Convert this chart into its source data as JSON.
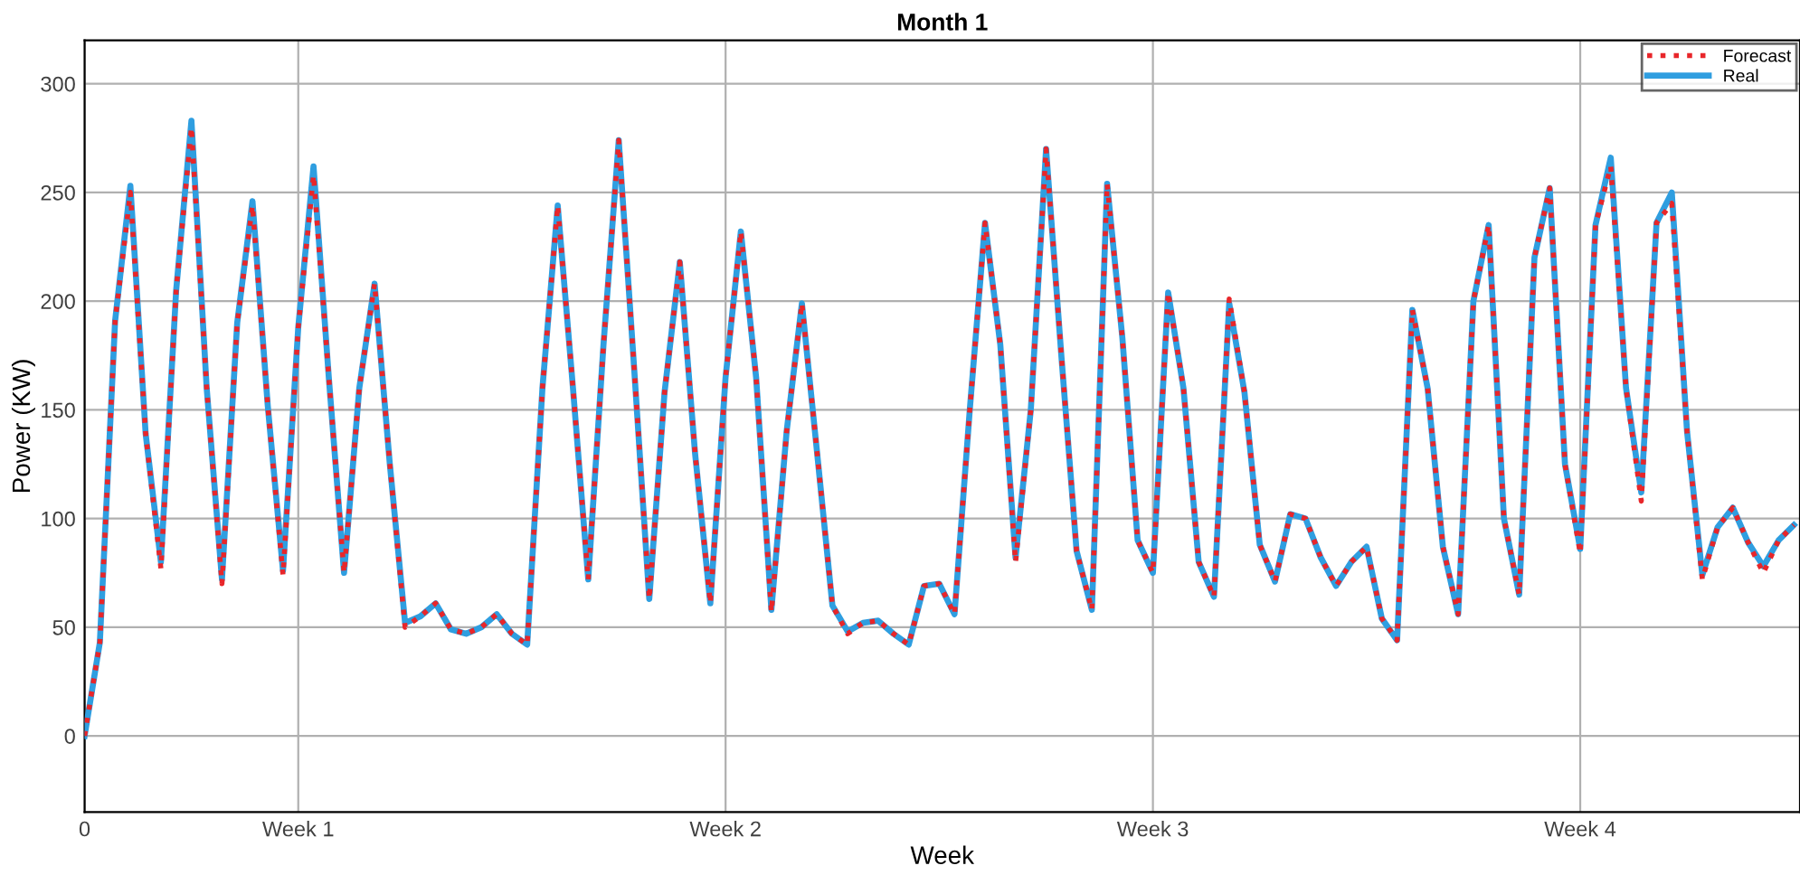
{
  "chart_data": {
    "type": "line",
    "title": "Month 1",
    "xlabel": "Week",
    "ylabel": "Power (KW)",
    "categories": [
      "0",
      null,
      null,
      null,
      null,
      null,
      null,
      null,
      null,
      null,
      null,
      null,
      null,
      null,
      "Week 1",
      null,
      null,
      null,
      null,
      null,
      null,
      null,
      null,
      null,
      null,
      null,
      null,
      null,
      null,
      null,
      null,
      null,
      null,
      null,
      null,
      null,
      null,
      null,
      null,
      null,
      null,
      null,
      "Week 2",
      null,
      null,
      null,
      null,
      null,
      null,
      null,
      null,
      null,
      null,
      null,
      null,
      null,
      null,
      null,
      null,
      null,
      null,
      null,
      null,
      null,
      null,
      null,
      null,
      null,
      null,
      null,
      "Week 3",
      null,
      null,
      null,
      null,
      null,
      null,
      null,
      null,
      null,
      null,
      null,
      null,
      null,
      null,
      null,
      null,
      null,
      null,
      null,
      null,
      null,
      null,
      null,
      null,
      null,
      null,
      null,
      "Week 4",
      null,
      null,
      null,
      null,
      null,
      null,
      null,
      null,
      null,
      null,
      null,
      null,
      null,
      null
    ],
    "ylim": [
      -35,
      320
    ],
    "yticks": [
      0,
      50,
      100,
      150,
      200,
      250,
      300
    ],
    "grid": true,
    "legend": "top right",
    "series": [
      {
        "name": "Forecast",
        "color": "#e8262a",
        "line_style": "dotted",
        "values": [
          0,
          43,
          191,
          250,
          139,
          77,
          205,
          280,
          160,
          70,
          190,
          244,
          152,
          74,
          188,
          258,
          165,
          75,
          160,
          208,
          125,
          50,
          55,
          61,
          49,
          47,
          50,
          56,
          47,
          42,
          160,
          244,
          160,
          72,
          180,
          274,
          170,
          63,
          158,
          218,
          130,
          61,
          165,
          232,
          165,
          57,
          140,
          199,
          130,
          60,
          47,
          52,
          53,
          47,
          42,
          69,
          70,
          56,
          150,
          236,
          180,
          80,
          150,
          270,
          175,
          85,
          58,
          254,
          183,
          90,
          75,
          204,
          160,
          80,
          64,
          201,
          158,
          88,
          71,
          102,
          100,
          82,
          69,
          80,
          87,
          54,
          44,
          196,
          160,
          87,
          56,
          200,
          235,
          100,
          65,
          220,
          252,
          125,
          84,
          235,
          262,
          160,
          108,
          236,
          245,
          140,
          72,
          96,
          105,
          89,
          75,
          90,
          97
        ]
      },
      {
        "name": "Real",
        "color": "#2f9ee0",
        "line_style": "solid",
        "values": [
          0,
          43,
          191,
          253,
          139,
          80,
          205,
          283,
          160,
          72,
          190,
          246,
          152,
          76,
          188,
          262,
          165,
          75,
          160,
          208,
          125,
          52,
          55,
          61,
          49,
          47,
          50,
          56,
          47,
          42,
          160,
          244,
          160,
          72,
          180,
          274,
          170,
          63,
          158,
          218,
          130,
          61,
          165,
          232,
          165,
          58,
          140,
          199,
          130,
          60,
          48,
          52,
          53,
          47,
          42,
          69,
          70,
          56,
          150,
          236,
          180,
          82,
          150,
          270,
          175,
          85,
          58,
          254,
          183,
          90,
          75,
          204,
          160,
          80,
          64,
          199,
          158,
          88,
          71,
          102,
          100,
          82,
          69,
          80,
          87,
          54,
          44,
          196,
          160,
          87,
          56,
          200,
          235,
          100,
          65,
          220,
          252,
          125,
          86,
          235,
          266,
          160,
          112,
          236,
          250,
          140,
          74,
          96,
          105,
          89,
          78,
          90,
          97
        ]
      }
    ]
  }
}
